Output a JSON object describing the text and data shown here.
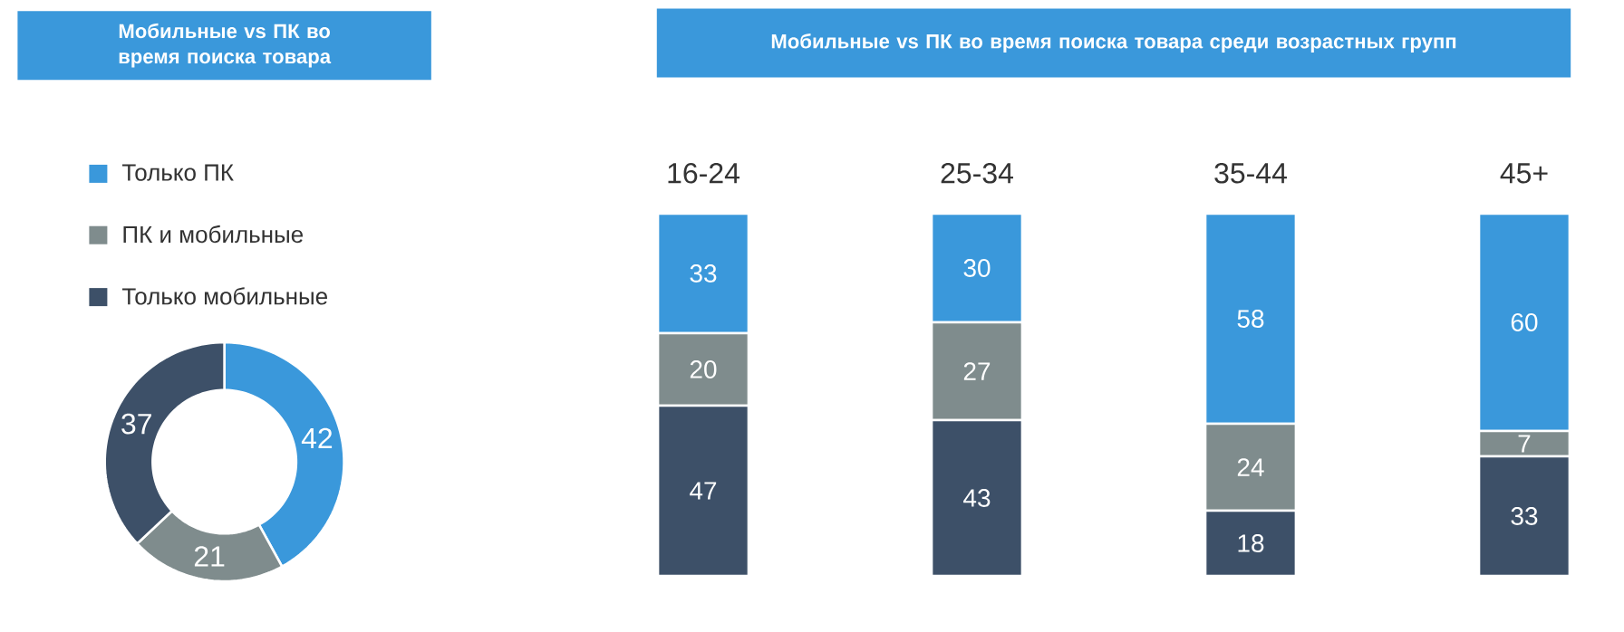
{
  "chart_data": [
    {
      "type": "donut",
      "title": "Мобильные vs ПК во время поиска товара",
      "categories": [
        "Только ПК",
        "ПК и мобильные",
        "Только мобильные"
      ],
      "values": [
        42,
        21,
        37
      ],
      "colors": [
        "#3a98db",
        "#7f8c8d",
        "#3d5068"
      ],
      "legend": "top",
      "data_labels": true
    },
    {
      "type": "bar",
      "title": "Мобильные vs ПК во время поиска товара среди возрастных групп",
      "categories": [
        "16-24",
        "25-34",
        "35-44",
        "45+"
      ],
      "stacked": true,
      "data_labels": true,
      "series": [
        {
          "color": "#3d5068",
          "values": [
            47,
            43,
            18,
            33
          ]
        },
        {
          "color": "#7f8c8d",
          "values": [
            20,
            27,
            24,
            7
          ]
        },
        {
          "color": "#3a98db",
          "values": [
            33,
            30,
            58,
            60
          ]
        }
      ]
    }
  ]
}
